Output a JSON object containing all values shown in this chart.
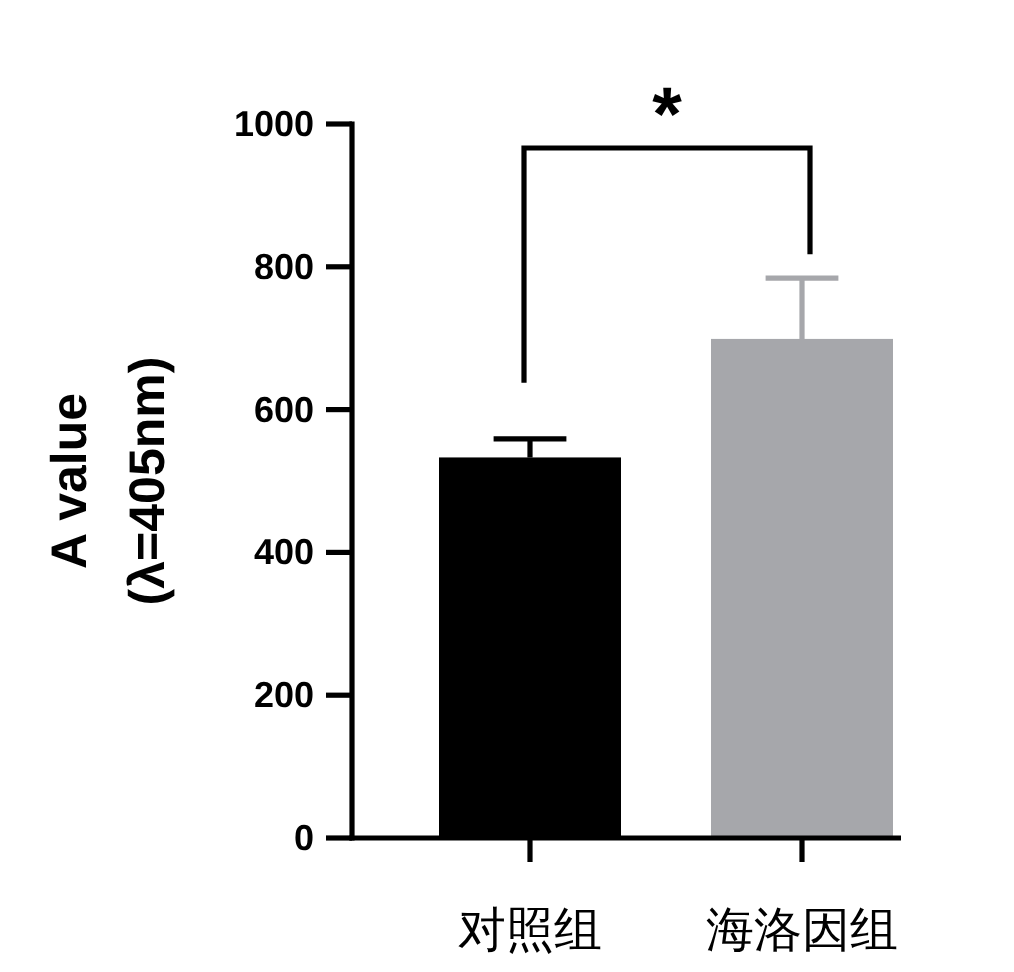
{
  "chart_data": {
    "type": "bar",
    "ylabel": "A value\n(λ=405nm)",
    "categories": [
      "对照组",
      "海洛因组"
    ],
    "values": [
      533,
      699
    ],
    "colors": [
      "#000000",
      "#a6a7ab"
    ],
    "errors": [
      [
        533,
        559
      ],
      [
        699,
        784
      ]
    ],
    "ylim": [
      0,
      1000
    ],
    "yticks": [
      0,
      200,
      400,
      600,
      800,
      1000
    ],
    "annotations": [
      "*"
    ]
  }
}
